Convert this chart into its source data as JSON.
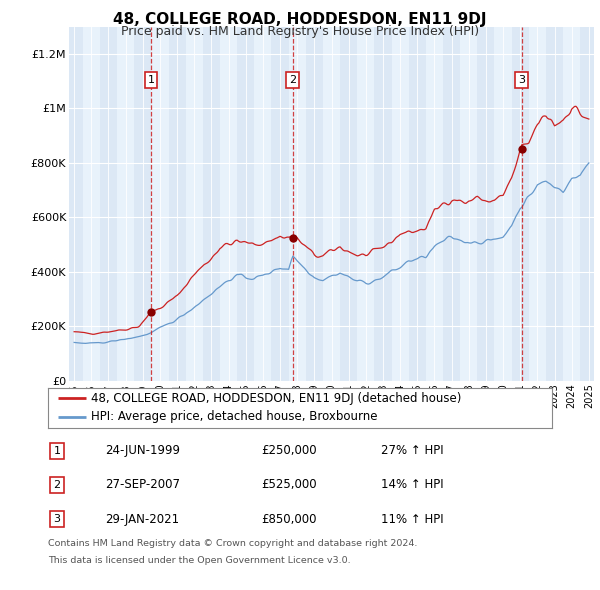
{
  "title": "48, COLLEGE ROAD, HODDESDON, EN11 9DJ",
  "subtitle": "Price paid vs. HM Land Registry's House Price Index (HPI)",
  "legend_line1": "48, COLLEGE ROAD, HODDESDON, EN11 9DJ (detached house)",
  "legend_line2": "HPI: Average price, detached house, Broxbourne",
  "transactions": [
    {
      "num": 1,
      "date": "24-JUN-1999",
      "price": "£250,000",
      "pct": "27%",
      "x_year": 1999.47
    },
    {
      "num": 2,
      "date": "27-SEP-2007",
      "price": "£525,000",
      "pct": "14%",
      "x_year": 2007.73
    },
    {
      "num": 3,
      "date": "29-JAN-2021",
      "price": "£850,000",
      "pct": "11%",
      "x_year": 2021.08
    }
  ],
  "footnote1": "Contains HM Land Registry data © Crown copyright and database right 2024.",
  "footnote2": "This data is licensed under the Open Government Licence v3.0.",
  "ylim": [
    0,
    1300000
  ],
  "xlim": [
    1994.7,
    2025.3
  ],
  "red_color": "#cc2222",
  "blue_color": "#6699cc",
  "grid_color": "#cccccc",
  "band_color1": "#dce8f5",
  "band_color2": "#e8f2fb",
  "marker_color": "#880000"
}
